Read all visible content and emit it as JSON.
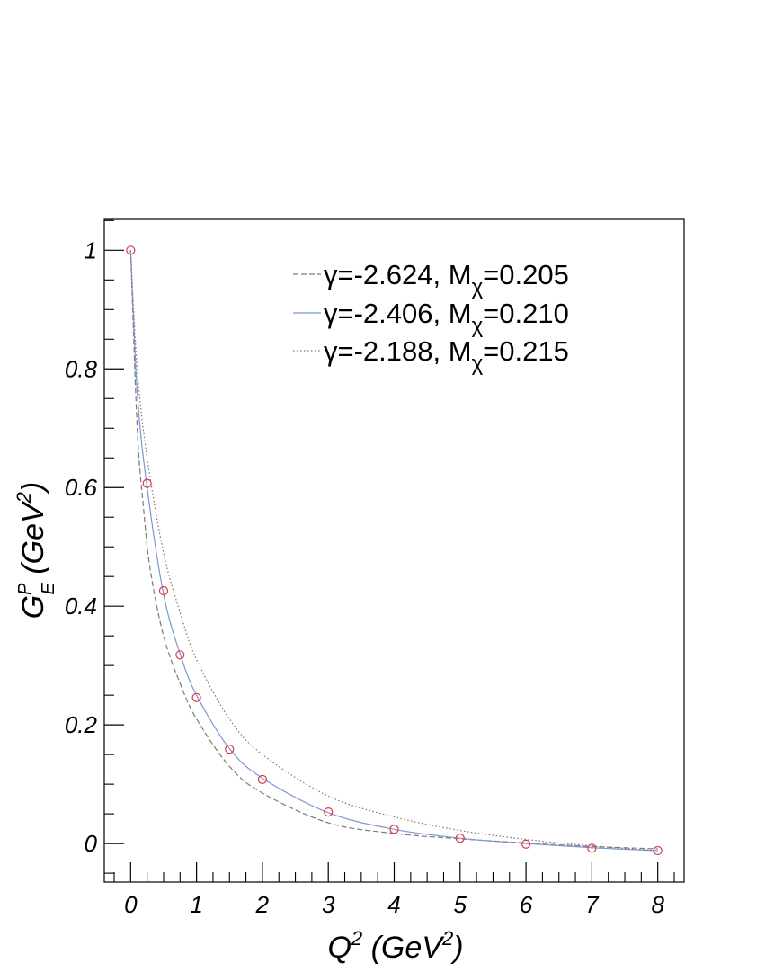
{
  "chart_data": {
    "type": "line",
    "title": "",
    "xlabel": {
      "main": "Q",
      "sup": "2",
      "unit_open": " (GeV",
      "unit_sup": "2",
      "unit_close": ")"
    },
    "ylabel": {
      "main": "G",
      "sup": "P",
      "sub": "E",
      "unit_open": " (GeV",
      "unit_sup": "2",
      "unit_close": ")"
    },
    "xlim": [
      -0.4,
      8.4
    ],
    "ylim": [
      -0.065,
      1.052
    ],
    "x_ticks": [
      0,
      1,
      2,
      3,
      4,
      5,
      6,
      7,
      8
    ],
    "x_tick_labels": [
      "0",
      "1",
      "2",
      "3",
      "4",
      "5",
      "6",
      "7",
      "8"
    ],
    "y_ticks": [
      0,
      0.2,
      0.4,
      0.6,
      0.8,
      1
    ],
    "y_tick_labels": [
      "0",
      "0.2",
      "0.4",
      "0.6",
      "0.8",
      "1"
    ],
    "grid": false,
    "legend_position": "top-right",
    "series": [
      {
        "name": "γ=-2.624, M_χ=0.205",
        "legend": {
          "pre": "γ=-2.624, M",
          "sub": "χ",
          "post": "=0.205"
        },
        "style": "dashed",
        "color": "#7a7a7a",
        "x": [
          0,
          0.1,
          0.2,
          0.3,
          0.5,
          0.75,
          1,
          1.5,
          2,
          3,
          4,
          5,
          6,
          7,
          8
        ],
        "y": [
          1.0,
          0.7,
          0.56,
          0.46,
          0.35,
          0.27,
          0.21,
          0.13,
          0.085,
          0.035,
          0.017,
          0.008,
          0.001,
          -0.005,
          -0.009
        ]
      },
      {
        "name": "γ=-2.406, M_χ=0.210",
        "legend": {
          "pre": "γ=-2.406, M",
          "sub": "χ",
          "post": "=0.210"
        },
        "style": "solid",
        "color": "#7b97d6",
        "x": [
          0,
          0.1,
          0.25,
          0.5,
          0.75,
          1,
          1.5,
          2,
          3,
          4,
          5,
          6,
          7,
          8
        ],
        "y": [
          1.0,
          0.76,
          0.6,
          0.42,
          0.32,
          0.25,
          0.16,
          0.11,
          0.052,
          0.024,
          0.009,
          0.0,
          -0.007,
          -0.012
        ]
      },
      {
        "name": "γ=-2.188, M_χ=0.215",
        "legend": {
          "pre": "γ=-2.188, M",
          "sub": "χ",
          "post": "=0.215"
        },
        "style": "dotted",
        "color": "#8a6f66",
        "x": [
          0,
          0.1,
          0.25,
          0.5,
          0.75,
          1,
          1.5,
          2,
          3,
          4,
          5,
          6,
          7,
          8
        ],
        "y": [
          1.0,
          0.8,
          0.65,
          0.49,
          0.39,
          0.31,
          0.21,
          0.15,
          0.08,
          0.045,
          0.022,
          0.007,
          -0.004,
          -0.012
        ]
      }
    ],
    "points": {
      "marker": "open-circle",
      "color": "#e0393e",
      "x": [
        0,
        0.25,
        0.5,
        0.75,
        1,
        1.5,
        2,
        3,
        4,
        5,
        6,
        7,
        8
      ],
      "y": [
        1.0,
        0.607,
        0.426,
        0.318,
        0.246,
        0.159,
        0.108,
        0.053,
        0.024,
        0.009,
        -0.001,
        -0.008,
        -0.012
      ]
    }
  }
}
